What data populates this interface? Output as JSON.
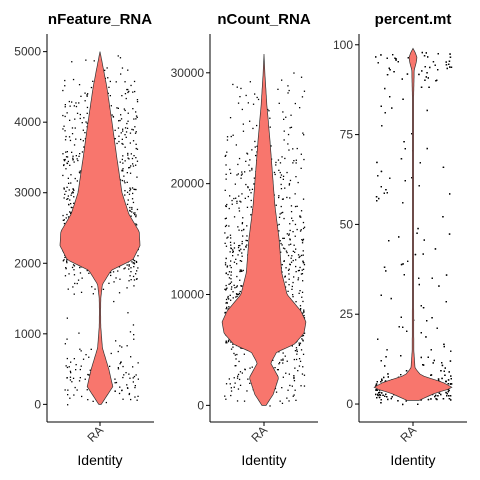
{
  "chart_data": [
    {
      "type": "violin",
      "title": "nFeature_RNA",
      "categories": [
        "RA"
      ],
      "xlabel": "Identity",
      "ylim": [
        -250,
        5250
      ],
      "yticks": [
        0,
        1000,
        2000,
        3000,
        4000,
        5000
      ],
      "fill_color": "#F8766D",
      "points_range": [
        0,
        5000
      ],
      "violin_profile": [
        [
          0,
          0.03
        ],
        [
          250,
          0.32
        ],
        [
          500,
          0.22
        ],
        [
          800,
          0.06
        ],
        [
          1100,
          0.02
        ],
        [
          1300,
          0.015
        ],
        [
          1500,
          0.02
        ],
        [
          1700,
          0.06
        ],
        [
          1900,
          0.28
        ],
        [
          2050,
          0.82
        ],
        [
          2250,
          1.0
        ],
        [
          2450,
          0.98
        ],
        [
          2700,
          0.72
        ],
        [
          3000,
          0.55
        ],
        [
          3500,
          0.42
        ],
        [
          4000,
          0.3
        ],
        [
          4500,
          0.17
        ],
        [
          4800,
          0.07
        ],
        [
          5000,
          0.0
        ]
      ]
    },
    {
      "type": "violin",
      "title": "nCount_RNA",
      "categories": [
        "RA"
      ],
      "xlabel": "Identity",
      "ylim": [
        -1500,
        33500
      ],
      "yticks": [
        0,
        10000,
        20000,
        30000
      ],
      "fill_color": "#F8766D",
      "points_range": [
        0,
        31000
      ],
      "violin_profile": [
        [
          0,
          0.05
        ],
        [
          1000,
          0.22
        ],
        [
          2500,
          0.35
        ],
        [
          3800,
          0.16
        ],
        [
          4800,
          0.3
        ],
        [
          5500,
          0.72
        ],
        [
          6500,
          0.95
        ],
        [
          7500,
          1.0
        ],
        [
          8500,
          0.88
        ],
        [
          10000,
          0.55
        ],
        [
          12000,
          0.42
        ],
        [
          15000,
          0.36
        ],
        [
          18000,
          0.26
        ],
        [
          21000,
          0.2
        ],
        [
          24000,
          0.14
        ],
        [
          27000,
          0.07
        ],
        [
          30000,
          0.02
        ],
        [
          31700,
          0.0
        ]
      ]
    },
    {
      "type": "violin",
      "title": "percent.mt",
      "categories": [
        "RA"
      ],
      "xlabel": "Identity",
      "ylim": [
        -5,
        103
      ],
      "yticks": [
        0,
        25,
        50,
        75,
        100
      ],
      "fill_color": "#F8766D",
      "points_range": [
        0,
        99
      ],
      "violin_profile": [
        [
          1,
          0.15
        ],
        [
          3,
          0.55
        ],
        [
          4.5,
          1.0
        ],
        [
          6,
          0.75
        ],
        [
          8,
          0.2
        ],
        [
          10,
          0.05
        ],
        [
          15,
          0.02
        ],
        [
          30,
          0.015
        ],
        [
          60,
          0.015
        ],
        [
          85,
          0.015
        ],
        [
          93,
          0.03
        ],
        [
          95,
          0.08
        ],
        [
          96.5,
          0.1
        ],
        [
          98,
          0.05
        ],
        [
          99,
          0.0
        ]
      ]
    }
  ]
}
